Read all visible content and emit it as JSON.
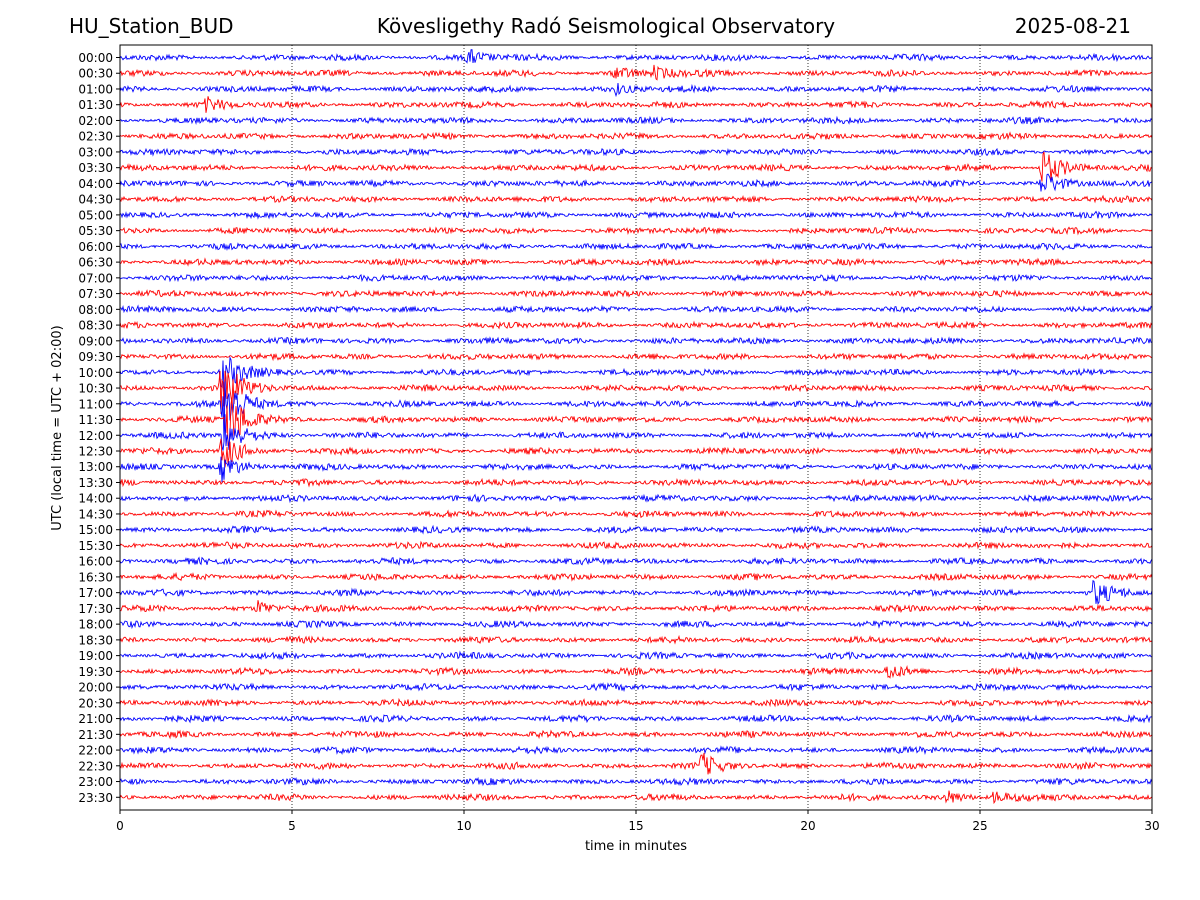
{
  "header": {
    "station": "HU_Station_BUD",
    "observatory": "Kövesligethy Radó Seismological Observatory",
    "date": "2025-08-21"
  },
  "chart_data": {
    "type": "line",
    "title": "Kövesligethy Radó Seismological Observatory",
    "xlabel": "time in minutes",
    "ylabel": "UTC (local time = UTC + 02:00)",
    "xlim": [
      0,
      30
    ],
    "x_ticks": [
      0,
      5,
      10,
      15,
      20,
      25,
      30
    ],
    "grid": "vertical dotted",
    "row_labels": [
      "00:00",
      "00:30",
      "01:00",
      "01:30",
      "02:00",
      "02:30",
      "03:00",
      "03:30",
      "04:00",
      "04:30",
      "05:00",
      "05:30",
      "06:00",
      "06:30",
      "07:00",
      "07:30",
      "08:00",
      "08:30",
      "09:00",
      "09:30",
      "10:00",
      "10:30",
      "11:00",
      "11:30",
      "12:00",
      "12:30",
      "13:00",
      "13:30",
      "14:00",
      "14:30",
      "15:00",
      "15:30",
      "16:00",
      "16:30",
      "17:00",
      "17:30",
      "18:00",
      "18:30",
      "19:00",
      "19:30",
      "20:00",
      "20:30",
      "21:00",
      "21:30",
      "22:00",
      "22:30",
      "23:00",
      "23:30"
    ],
    "colors": [
      "#0000ff",
      "#ff0000"
    ],
    "events": [
      {
        "row": 0,
        "minute": 10.1,
        "amp": 0.5
      },
      {
        "row": 1,
        "minute": 14.4,
        "amp": 0.4
      },
      {
        "row": 1,
        "minute": 15.5,
        "amp": 0.4
      },
      {
        "row": 2,
        "minute": 14.4,
        "amp": 0.3
      },
      {
        "row": 3,
        "minute": 2.5,
        "amp": 0.4
      },
      {
        "row": 7,
        "minute": 26.8,
        "amp": 1.3
      },
      {
        "row": 8,
        "minute": 26.8,
        "amp": 0.8
      },
      {
        "row": 20,
        "minute": 2.95,
        "amp": 1.4
      },
      {
        "row": 21,
        "minute": 2.95,
        "amp": 2.0
      },
      {
        "row": 22,
        "minute": 3.0,
        "amp": 2.4
      },
      {
        "row": 23,
        "minute": 3.1,
        "amp": 2.3
      },
      {
        "row": 24,
        "minute": 3.0,
        "amp": 1.5
      },
      {
        "row": 25,
        "minute": 2.95,
        "amp": 1.2
      },
      {
        "row": 26,
        "minute": 2.95,
        "amp": 0.9
      },
      {
        "row": 34,
        "minute": 28.3,
        "amp": 0.8
      },
      {
        "row": 35,
        "minute": 4.0,
        "amp": 0.5
      },
      {
        "row": 39,
        "minute": 22.3,
        "amp": 0.5
      },
      {
        "row": 45,
        "minute": 16.9,
        "amp": 0.7
      },
      {
        "row": 47,
        "minute": 24.0,
        "amp": 0.4
      },
      {
        "row": 47,
        "minute": 25.4,
        "amp": 0.4
      }
    ]
  }
}
